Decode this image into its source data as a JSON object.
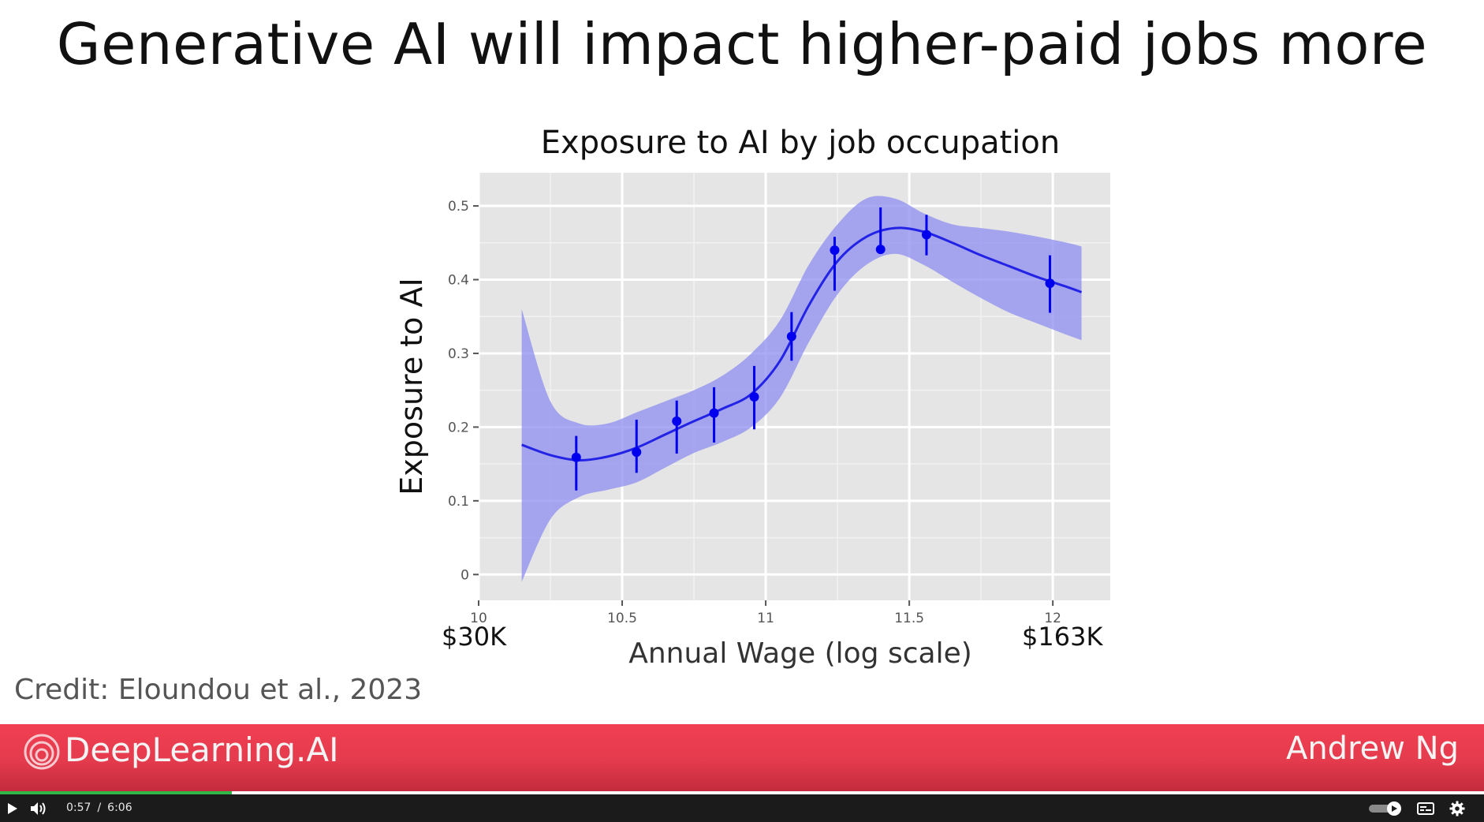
{
  "slide": {
    "title": "Generative AI will impact higher-paid jobs more",
    "credit": "Credit: Eloundou et al., 2023",
    "wage_low_label": "$30K",
    "wage_high_label": "$163K"
  },
  "chart_data": {
    "type": "line",
    "title": "Exposure to AI by job occupation",
    "xlabel": "Annual Wage (log scale)",
    "ylabel": "Exposure to AI",
    "xlim": [
      10,
      12.2
    ],
    "ylim": [
      -0.035,
      0.545
    ],
    "x_ticks": [
      10,
      10.5,
      11,
      11.5,
      12
    ],
    "x_tick_labels": [
      "10",
      "10.5",
      "11",
      "11.5",
      "12"
    ],
    "y_ticks": [
      0,
      0.1,
      0.2,
      0.3,
      0.4,
      0.5
    ],
    "y_tick_labels": [
      "0",
      "0.1",
      "0.2",
      "0.3",
      "0.4",
      "0.5"
    ],
    "grid": true,
    "background": "#e5e5e5",
    "colors": {
      "line": "#2323e6",
      "band": "#8c8cf0",
      "points": "#0000ee"
    },
    "series": [
      {
        "type": "smooth-fit",
        "x": [
          10.15,
          10.25,
          10.35,
          10.45,
          10.55,
          10.65,
          10.75,
          10.85,
          10.95,
          11.05,
          11.15,
          11.25,
          11.35,
          11.45,
          11.55,
          11.65,
          11.75,
          11.85,
          11.95,
          12.05,
          12.1
        ],
        "y": [
          0.176,
          0.162,
          0.155,
          0.16,
          0.172,
          0.19,
          0.208,
          0.225,
          0.245,
          0.29,
          0.365,
          0.425,
          0.458,
          0.47,
          0.465,
          0.45,
          0.433,
          0.418,
          0.403,
          0.39,
          0.383
        ],
        "lower": [
          -0.01,
          0.075,
          0.105,
          0.115,
          0.125,
          0.145,
          0.165,
          0.18,
          0.2,
          0.24,
          0.315,
          0.38,
          0.42,
          0.435,
          0.42,
          0.397,
          0.375,
          0.355,
          0.34,
          0.325,
          0.318
        ],
        "upper": [
          0.36,
          0.235,
          0.205,
          0.205,
          0.22,
          0.235,
          0.25,
          0.27,
          0.3,
          0.345,
          0.42,
          0.475,
          0.51,
          0.51,
          0.49,
          0.475,
          0.47,
          0.465,
          0.458,
          0.45,
          0.445
        ]
      },
      {
        "type": "points-with-error",
        "x": [
          10.34,
          10.55,
          10.69,
          10.82,
          10.96,
          11.09,
          11.24,
          11.4,
          11.56,
          11.99
        ],
        "y": [
          0.159,
          0.166,
          0.208,
          0.219,
          0.241,
          0.323,
          0.44,
          0.441,
          0.461,
          0.395
        ],
        "err_low": [
          0.114,
          0.138,
          0.164,
          0.179,
          0.197,
          0.29,
          0.385,
          0.441,
          0.433,
          0.355
        ],
        "err_high": [
          0.188,
          0.21,
          0.236,
          0.254,
          0.283,
          0.356,
          0.458,
          0.498,
          0.488,
          0.433
        ]
      }
    ]
  },
  "brand": {
    "name": "DeepLearning.AI",
    "presenter": "Andrew Ng"
  },
  "player": {
    "current_time": "0:57",
    "separator": "/",
    "duration": "6:06",
    "progress": 0.156,
    "icons": {
      "play": "play-icon",
      "volume": "volume-icon",
      "autoplay": "autoplay-toggle-icon",
      "captions": "captions-icon",
      "settings": "settings-icon"
    }
  }
}
